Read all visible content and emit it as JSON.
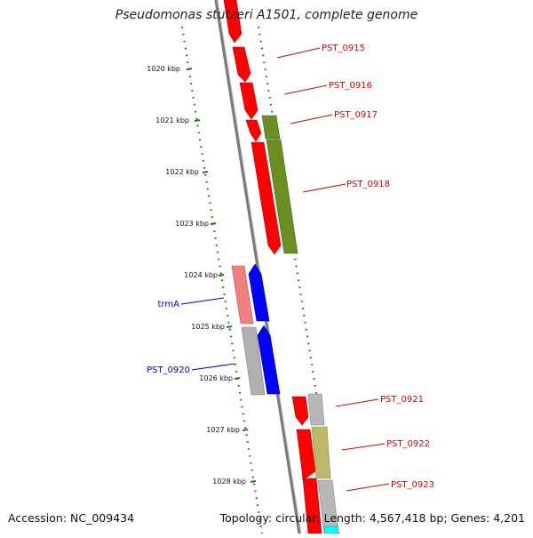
{
  "title": "Pseudomonas stutzeri A1501, complete genome",
  "footer": {
    "accession": "Accession: NC_009434",
    "summary": "Topology: circular; Length: 4,567,418 bp; Genes: 4,201"
  },
  "colors": {
    "backbone": "#7a7a7a",
    "ruler": "#1a7a1a",
    "gene_red": "#ff0000",
    "gene_olive": "#6b8e23",
    "gene_blue": "#0000ff",
    "gene_pink": "#f08080",
    "gene_gray": "#b0b0b0",
    "gene_khaki": "#bdb76b",
    "gene_cyan": "#00ffff",
    "label_red": "#dd0000",
    "label_blue": "#0000cc"
  },
  "ruler_labels": [
    "1020 kbp",
    "1021 kbp",
    "1022 kbp",
    "1023 kbp",
    "1024 kbp",
    "1025 kbp",
    "1026 kbp",
    "1027 kbp",
    "1028 kbp"
  ],
  "gene_labels": [
    {
      "text": "PST_0915",
      "side": "right"
    },
    {
      "text": "PST_0916",
      "side": "right"
    },
    {
      "text": "PST_0917",
      "side": "right"
    },
    {
      "text": "PST_0918",
      "side": "right"
    },
    {
      "text": "trmA",
      "side": "left"
    },
    {
      "text": "PST_0920",
      "side": "left"
    },
    {
      "text": "PST_0921",
      "side": "right"
    },
    {
      "text": "PST_0922",
      "side": "right"
    },
    {
      "text": "PST_0923",
      "side": "right"
    }
  ]
}
